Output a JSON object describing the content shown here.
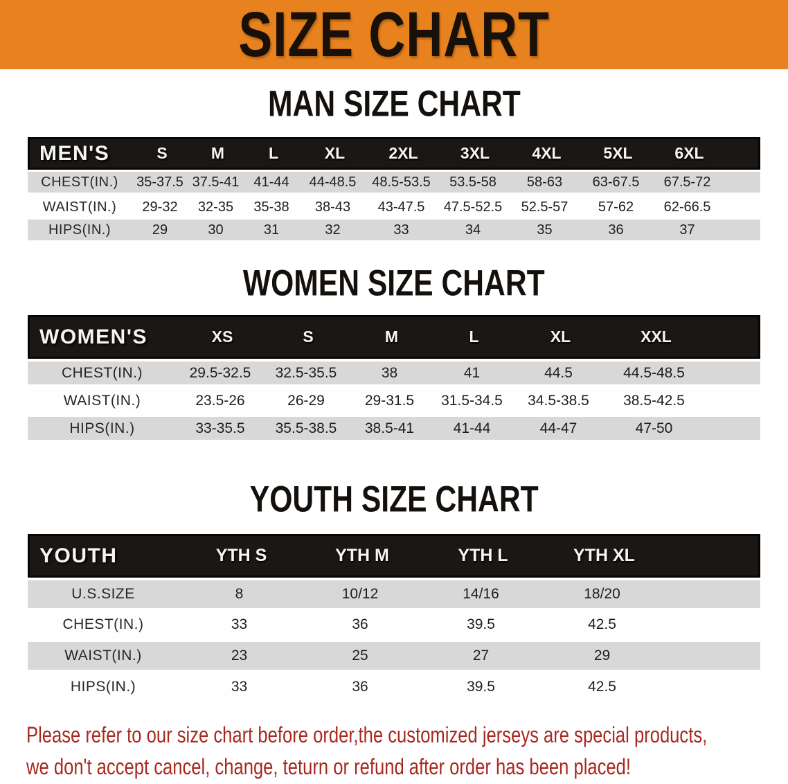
{
  "banner": {
    "title": "SIZE CHART"
  },
  "colors": {
    "banner_bg": "#E8821E",
    "band_bg": "#1B1714",
    "row_shade": "#D8D8D8",
    "footer_color": "#A8281F"
  },
  "sections": {
    "men": {
      "title": "MAN SIZE CHART",
      "header": {
        "label": "MEN'S",
        "sizes": [
          "S",
          "M",
          "L",
          "XL",
          "2XL",
          "3XL",
          "4XL",
          "5XL",
          "6XL"
        ]
      },
      "rows": [
        {
          "label": "CHEST(IN.)",
          "values": [
            "35-37.5",
            "37.5-41",
            "41-44",
            "44-48.5",
            "48.5-53.5",
            "53.5-58",
            "58-63",
            "63-67.5",
            "67.5-72"
          ]
        },
        {
          "label": "WAIST(IN.)",
          "values": [
            "29-32",
            "32-35",
            "35-38",
            "38-43",
            "43-47.5",
            "47.5-52.5",
            "52.5-57",
            "57-62",
            "62-66.5"
          ]
        },
        {
          "label": "HIPS(IN.)",
          "values": [
            "29",
            "30",
            "31",
            "32",
            "33",
            "34",
            "35",
            "36",
            "37"
          ]
        }
      ]
    },
    "women": {
      "title": "WOMEN SIZE CHART",
      "header": {
        "label": "WOMEN'S",
        "sizes": [
          "XS",
          "S",
          "M",
          "L",
          "XL",
          "XXL"
        ]
      },
      "rows": [
        {
          "label": "CHEST(IN.)",
          "values": [
            "29.5-32.5",
            "32.5-35.5",
            "38",
            "41",
            "44.5",
            "44.5-48.5"
          ]
        },
        {
          "label": "WAIST(IN.)",
          "values": [
            "23.5-26",
            "26-29",
            "29-31.5",
            "31.5-34.5",
            "34.5-38.5",
            "38.5-42.5"
          ]
        },
        {
          "label": "HIPS(IN.)",
          "values": [
            "33-35.5",
            "35.5-38.5",
            "38.5-41",
            "41-44",
            "44-47",
            "47-50"
          ]
        }
      ]
    },
    "youth": {
      "title": "YOUTH SIZE CHART",
      "header": {
        "label": "YOUTH",
        "sizes": [
          "YTH S",
          "YTH M",
          "YTH L",
          "YTH XL"
        ]
      },
      "rows": [
        {
          "label": "U.S.SIZE",
          "values": [
            "8",
            "10/12",
            "14/16",
            "18/20"
          ]
        },
        {
          "label": "CHEST(IN.)",
          "values": [
            "33",
            "36",
            "39.5",
            "42.5"
          ]
        },
        {
          "label": "WAIST(IN.)",
          "values": [
            "23",
            "25",
            "27",
            "29"
          ]
        },
        {
          "label": "HIPS(IN.)",
          "values": [
            "33",
            "36",
            "39.5",
            "42.5"
          ]
        }
      ]
    }
  },
  "footer": {
    "line1": "Please refer to our size chart before order,the customized jerseys are special products,",
    "line2": "we don't accept cancel, change, teturn or refund after order has been placed!"
  }
}
